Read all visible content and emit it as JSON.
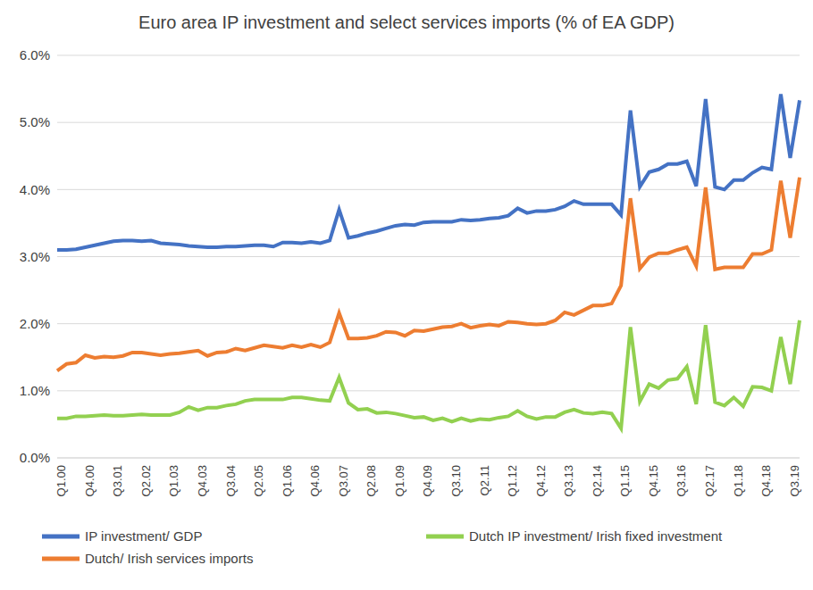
{
  "chart_data": {
    "type": "line",
    "title": "Euro area IP investment and select services imports (% of EA GDP)",
    "categories": [
      "Q1.00",
      null,
      null,
      "Q4.00",
      null,
      null,
      "Q3.01",
      null,
      null,
      "Q2.02",
      null,
      null,
      "Q1.03",
      null,
      null,
      "Q4.03",
      null,
      null,
      "Q3.04",
      null,
      null,
      "Q2.05",
      null,
      null,
      "Q1.06",
      null,
      null,
      "Q4.06",
      null,
      null,
      "Q3.07",
      null,
      null,
      "Q2.08",
      null,
      null,
      "Q1.09",
      null,
      null,
      "Q4.09",
      null,
      null,
      "Q3.10",
      null,
      null,
      "Q2.11",
      null,
      null,
      "Q1.12",
      null,
      null,
      "Q4.12",
      null,
      null,
      "Q3.13",
      null,
      null,
      "Q2.14",
      null,
      null,
      "Q1.15",
      null,
      null,
      "Q4.15",
      null,
      null,
      "Q3.16",
      null,
      null,
      "Q2.17",
      null,
      null,
      "Q1.18",
      null,
      null,
      "Q4.18",
      null,
      null,
      "Q3.19",
      null
    ],
    "series": [
      {
        "name": "IP investment/ GDP",
        "color": "#4472C4",
        "values": [
          3.1,
          3.1,
          3.11,
          3.14,
          3.17,
          3.2,
          3.23,
          3.24,
          3.24,
          3.23,
          3.24,
          3.2,
          3.19,
          3.18,
          3.16,
          3.15,
          3.14,
          3.14,
          3.15,
          3.15,
          3.16,
          3.17,
          3.17,
          3.15,
          3.21,
          3.21,
          3.2,
          3.22,
          3.2,
          3.24,
          3.7,
          3.28,
          3.31,
          3.35,
          3.38,
          3.42,
          3.46,
          3.48,
          3.47,
          3.51,
          3.52,
          3.52,
          3.52,
          3.55,
          3.54,
          3.55,
          3.57,
          3.58,
          3.61,
          3.72,
          3.65,
          3.68,
          3.68,
          3.7,
          3.75,
          3.83,
          3.78,
          3.78,
          3.78,
          3.78,
          3.62,
          5.18,
          4.04,
          4.26,
          4.3,
          4.38,
          4.38,
          4.42,
          4.05,
          5.35,
          4.04,
          4.0,
          4.14,
          4.14,
          4.25,
          4.33,
          4.3,
          5.42,
          4.47,
          5.33
        ]
      },
      {
        "name": "Dutch IP investment/ Irish fixed investment",
        "color": "#92D050",
        "values": [
          0.59,
          0.59,
          0.62,
          0.62,
          0.63,
          0.64,
          0.63,
          0.63,
          0.64,
          0.65,
          0.64,
          0.64,
          0.64,
          0.68,
          0.76,
          0.71,
          0.75,
          0.75,
          0.78,
          0.8,
          0.85,
          0.87,
          0.87,
          0.87,
          0.87,
          0.9,
          0.9,
          0.88,
          0.86,
          0.85,
          1.2,
          0.82,
          0.72,
          0.73,
          0.67,
          0.68,
          0.66,
          0.63,
          0.6,
          0.61,
          0.56,
          0.59,
          0.54,
          0.59,
          0.55,
          0.58,
          0.57,
          0.6,
          0.62,
          0.7,
          0.62,
          0.58,
          0.61,
          0.61,
          0.68,
          0.72,
          0.67,
          0.66,
          0.68,
          0.66,
          0.44,
          1.95,
          0.84,
          1.1,
          1.04,
          1.16,
          1.18,
          1.36,
          0.8,
          1.98,
          0.83,
          0.78,
          0.9,
          0.77,
          1.06,
          1.05,
          1.0,
          1.8,
          1.1,
          2.05
        ]
      },
      {
        "name": "Dutch/ Irish services imports",
        "color": "#ED7D31",
        "values": [
          1.3,
          1.4,
          1.42,
          1.53,
          1.49,
          1.51,
          1.5,
          1.52,
          1.57,
          1.57,
          1.55,
          1.53,
          1.55,
          1.56,
          1.58,
          1.6,
          1.52,
          1.57,
          1.58,
          1.63,
          1.6,
          1.64,
          1.68,
          1.66,
          1.64,
          1.68,
          1.65,
          1.69,
          1.65,
          1.72,
          2.16,
          1.78,
          1.78,
          1.79,
          1.82,
          1.88,
          1.87,
          1.82,
          1.9,
          1.89,
          1.92,
          1.95,
          1.96,
          2.0,
          1.94,
          1.97,
          1.99,
          1.97,
          2.03,
          2.02,
          2.0,
          1.99,
          2.0,
          2.05,
          2.17,
          2.13,
          2.2,
          2.27,
          2.27,
          2.3,
          2.57,
          3.87,
          2.82,
          2.99,
          3.05,
          3.05,
          3.1,
          3.14,
          2.86,
          4.03,
          2.81,
          2.84,
          2.84,
          2.84,
          3.04,
          3.04,
          3.1,
          4.13,
          3.28,
          4.18
        ]
      }
    ],
    "ylim": [
      0,
      6
    ],
    "yticks": [
      {
        "value": 0,
        "label": "0.0%"
      },
      {
        "value": 1,
        "label": "1.0%"
      },
      {
        "value": 2,
        "label": "2.0%"
      },
      {
        "value": 3,
        "label": "3.0%"
      },
      {
        "value": 4,
        "label": "4.0%"
      },
      {
        "value": 5,
        "label": "5.0%"
      },
      {
        "value": 6,
        "label": "6.0%"
      }
    ],
    "grid": true,
    "legend": "bottom"
  }
}
